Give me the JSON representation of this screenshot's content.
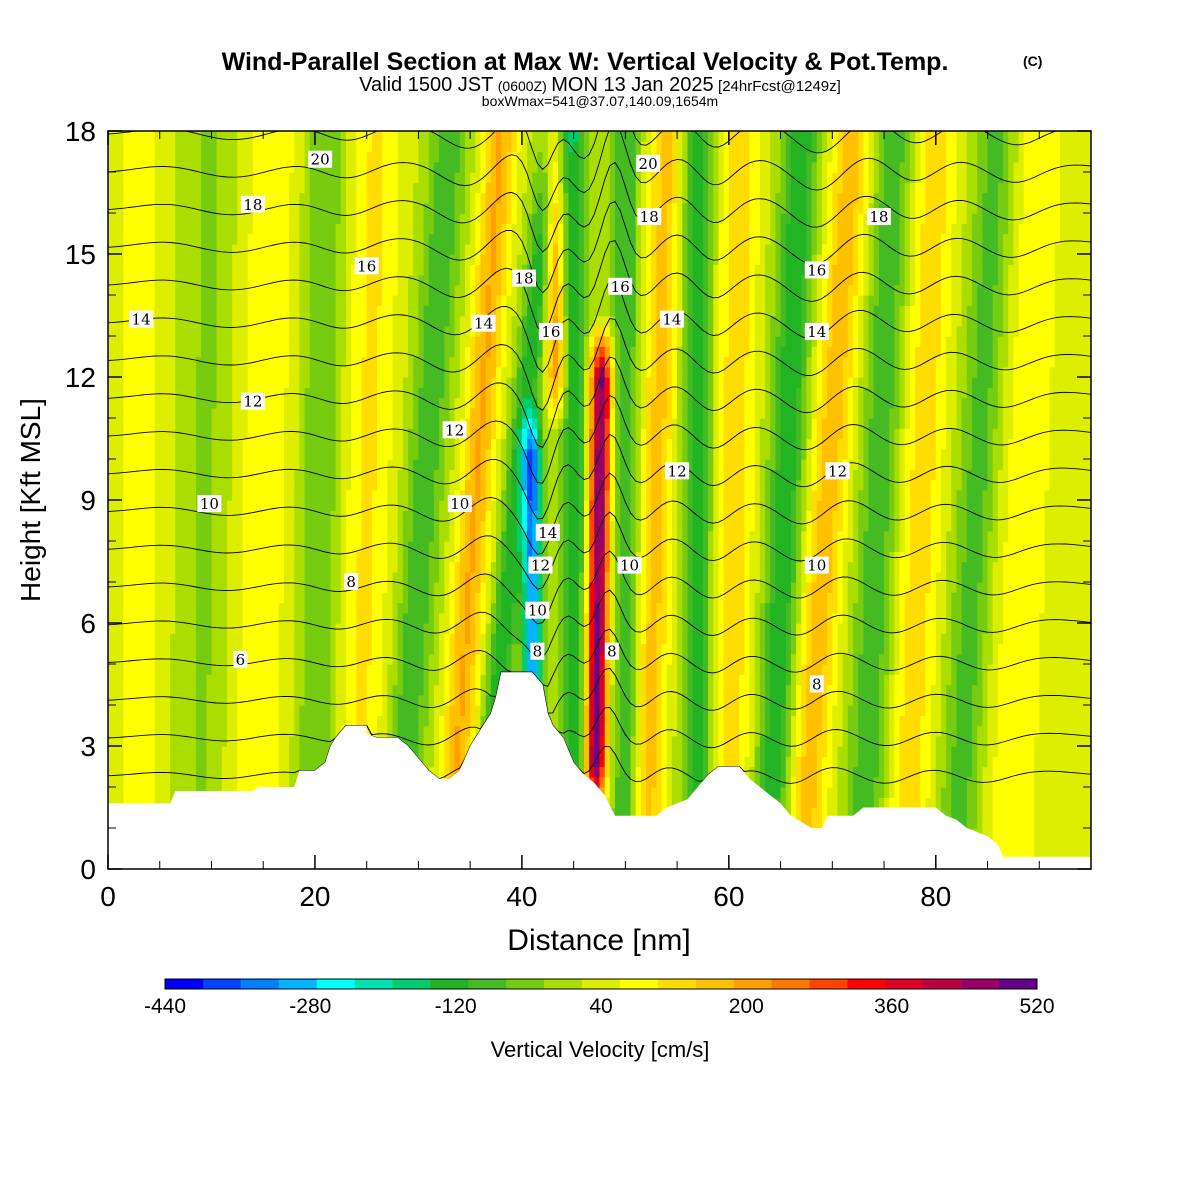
{
  "header": {
    "title": "Wind-Parallel Section at Max W: Vertical Velocity & Pot.Temp.",
    "title_units": "(C)",
    "valid_prefix": "Valid 1500 JST",
    "valid_utc": "(0600Z)",
    "valid_date": "MON 13 Jan 2025",
    "forecast": "[24hrFcst@1249z]",
    "boxwmax": "boxWmax=541@37.07,140.09,1654m"
  },
  "chart_data": {
    "type": "heatmap",
    "xlabel": "Distance [nm]",
    "ylabel": "Height [Kft MSL]",
    "xlim": [
      0,
      95
    ],
    "ylim": [
      0,
      18
    ],
    "x_ticks": [
      0,
      20,
      40,
      60,
      80
    ],
    "y_ticks": [
      0,
      3,
      6,
      9,
      12,
      15,
      18
    ],
    "colorbar": {
      "label": "Vertical Velocity [cm/s]",
      "ticks": [
        -440,
        -280,
        -120,
        40,
        200,
        360,
        520
      ],
      "colors": [
        "#0000ff",
        "#0044ff",
        "#0080ff",
        "#00b4ff",
        "#00ffff",
        "#00e0b0",
        "#00cc70",
        "#22b422",
        "#44bb22",
        "#77cc11",
        "#aadd00",
        "#ddee00",
        "#ffff00",
        "#ffdd00",
        "#ffc000",
        "#ffa000",
        "#ff7800",
        "#ff4400",
        "#ff0000",
        "#dd0022",
        "#bb0044",
        "#990066",
        "#660088"
      ]
    },
    "terrain": [
      [
        0,
        1.6
      ],
      [
        6,
        1.6
      ],
      [
        6.5,
        1.9
      ],
      [
        14,
        1.9
      ],
      [
        14.5,
        2.0
      ],
      [
        18,
        2.0
      ],
      [
        18.5,
        2.4
      ],
      [
        20,
        2.4
      ],
      [
        21,
        2.6
      ],
      [
        21.5,
        3.0
      ],
      [
        22,
        3.2
      ],
      [
        23,
        3.5
      ],
      [
        24,
        3.5
      ],
      [
        25,
        3.5
      ],
      [
        25,
        3.3
      ],
      [
        26,
        3.2
      ],
      [
        28,
        3.2
      ],
      [
        29,
        3.0
      ],
      [
        30,
        2.7
      ],
      [
        31,
        2.4
      ],
      [
        32,
        2.2
      ],
      [
        33,
        2.2
      ],
      [
        34,
        2.4
      ],
      [
        35,
        3.0
      ],
      [
        36,
        3.4
      ],
      [
        37,
        3.8
      ],
      [
        37.5,
        4.2
      ],
      [
        38,
        4.8
      ],
      [
        41,
        4.8
      ],
      [
        42,
        4.5
      ],
      [
        42.5,
        3.8
      ],
      [
        43,
        3.5
      ],
      [
        44,
        3.2
      ],
      [
        45,
        2.6
      ],
      [
        46,
        2.3
      ],
      [
        47,
        2.1
      ],
      [
        48,
        1.8
      ],
      [
        49,
        1.3
      ],
      [
        53,
        1.3
      ],
      [
        54,
        1.5
      ],
      [
        55,
        1.6
      ],
      [
        56,
        1.7
      ],
      [
        57,
        2.0
      ],
      [
        58,
        2.3
      ],
      [
        59,
        2.5
      ],
      [
        61,
        2.5
      ],
      [
        62,
        2.2
      ],
      [
        63,
        2.0
      ],
      [
        64,
        1.8
      ],
      [
        65,
        1.6
      ],
      [
        66,
        1.3
      ],
      [
        68,
        1.0
      ],
      [
        69,
        1.0
      ],
      [
        69.5,
        1.3
      ],
      [
        72,
        1.3
      ],
      [
        73,
        1.5
      ],
      [
        80,
        1.5
      ],
      [
        81,
        1.3
      ],
      [
        82,
        1.2
      ],
      [
        83,
        1.0
      ],
      [
        85,
        0.8
      ],
      [
        86,
        0.6
      ],
      [
        86.5,
        0.3
      ],
      [
        95,
        0.3
      ]
    ],
    "ridges": [
      {
        "x0": 3,
        "x1": 3,
        "amp": 55,
        "w": 2.5
      },
      {
        "x0": 9,
        "x1": 10,
        "amp": -50,
        "w": 2.5
      },
      {
        "x0": 14,
        "x1": 16,
        "amp": 70,
        "w": 3
      },
      {
        "x0": 20,
        "x1": 21,
        "amp": -90,
        "w": 2
      },
      {
        "x0": 24,
        "x1": 26,
        "amp": 90,
        "w": 2.5
      },
      {
        "x0": 28,
        "x1": 33,
        "amp": -120,
        "w": 1.8
      },
      {
        "x0": 33,
        "x1": 38,
        "amp": 170,
        "w": 1.6
      },
      {
        "x0": 36,
        "x1": 43,
        "amp": -160,
        "w": 1.3
      },
      {
        "x0": 41,
        "x1": 41,
        "amp": -340,
        "w": 0.9,
        "y0": 3.5,
        "y1": 10
      },
      {
        "x0": 44,
        "x1": 43,
        "amp": 200,
        "w": 1.0,
        "y0": 12,
        "y1": 18
      },
      {
        "x0": 45,
        "x1": 45,
        "amp": -170,
        "w": 1.2
      },
      {
        "x0": 47,
        "x1": 48,
        "amp": 470,
        "w": 1.0,
        "y0": 2.5,
        "y1": 12
      },
      {
        "x0": 50,
        "x1": 50,
        "amp": -130,
        "w": 1.3
      },
      {
        "x0": 52,
        "x1": 54,
        "amp": 140,
        "w": 1.6
      },
      {
        "x0": 57,
        "x1": 57,
        "amp": -150,
        "w": 1.5
      },
      {
        "x0": 60,
        "x1": 61,
        "amp": 110,
        "w": 2
      },
      {
        "x0": 64,
        "x1": 67,
        "amp": -160,
        "w": 1.8
      },
      {
        "x0": 67,
        "x1": 72,
        "amp": 150,
        "w": 2
      },
      {
        "x0": 73,
        "x1": 76,
        "amp": -120,
        "w": 2
      },
      {
        "x0": 77,
        "x1": 80,
        "amp": 110,
        "w": 2.2
      },
      {
        "x0": 82,
        "x1": 86,
        "amp": -110,
        "w": 2
      },
      {
        "x0": 87,
        "x1": 90,
        "amp": 70,
        "w": 3
      }
    ],
    "theta_levels": [
      3,
      4,
      5,
      6,
      7,
      8,
      9,
      10,
      11,
      12,
      13,
      14,
      15,
      16,
      17,
      18,
      19,
      20
    ],
    "contour_labels": [
      {
        "text": "20",
        "x": 20.5,
        "y": 17.3
      },
      {
        "text": "18",
        "x": 14,
        "y": 16.2
      },
      {
        "text": "16",
        "x": 25,
        "y": 14.7
      },
      {
        "text": "14",
        "x": 3.2,
        "y": 13.4
      },
      {
        "text": "12",
        "x": 14,
        "y": 11.4
      },
      {
        "text": "10",
        "x": 9.8,
        "y": 8.9
      },
      {
        "text": "8",
        "x": 23.5,
        "y": 7.0
      },
      {
        "text": "6",
        "x": 12.8,
        "y": 5.1
      },
      {
        "text": "20",
        "x": 52.2,
        "y": 17.2
      },
      {
        "text": "18",
        "x": 52.3,
        "y": 15.9
      },
      {
        "text": "18",
        "x": 40.2,
        "y": 14.4
      },
      {
        "text": "16",
        "x": 49.5,
        "y": 14.2
      },
      {
        "text": "16",
        "x": 42.8,
        "y": 13.1
      },
      {
        "text": "14",
        "x": 36.3,
        "y": 13.3
      },
      {
        "text": "14",
        "x": 54.5,
        "y": 13.4
      },
      {
        "text": "16",
        "x": 68.5,
        "y": 14.6
      },
      {
        "text": "18",
        "x": 74.5,
        "y": 15.9
      },
      {
        "text": "14",
        "x": 68.5,
        "y": 13.1
      },
      {
        "text": "12",
        "x": 33.5,
        "y": 10.7
      },
      {
        "text": "12",
        "x": 55,
        "y": 9.7
      },
      {
        "text": "12",
        "x": 70.5,
        "y": 9.7
      },
      {
        "text": "10",
        "x": 34,
        "y": 8.9
      },
      {
        "text": "14",
        "x": 42.5,
        "y": 8.2
      },
      {
        "text": "12",
        "x": 41.8,
        "y": 7.4
      },
      {
        "text": "10",
        "x": 41.5,
        "y": 6.3
      },
      {
        "text": "8",
        "x": 41.5,
        "y": 5.3
      },
      {
        "text": "10",
        "x": 50.4,
        "y": 7.4
      },
      {
        "text": "10",
        "x": 68.5,
        "y": 7.4
      },
      {
        "text": "8",
        "x": 48.7,
        "y": 5.3
      },
      {
        "text": "8",
        "x": 68.5,
        "y": 4.5
      }
    ]
  }
}
